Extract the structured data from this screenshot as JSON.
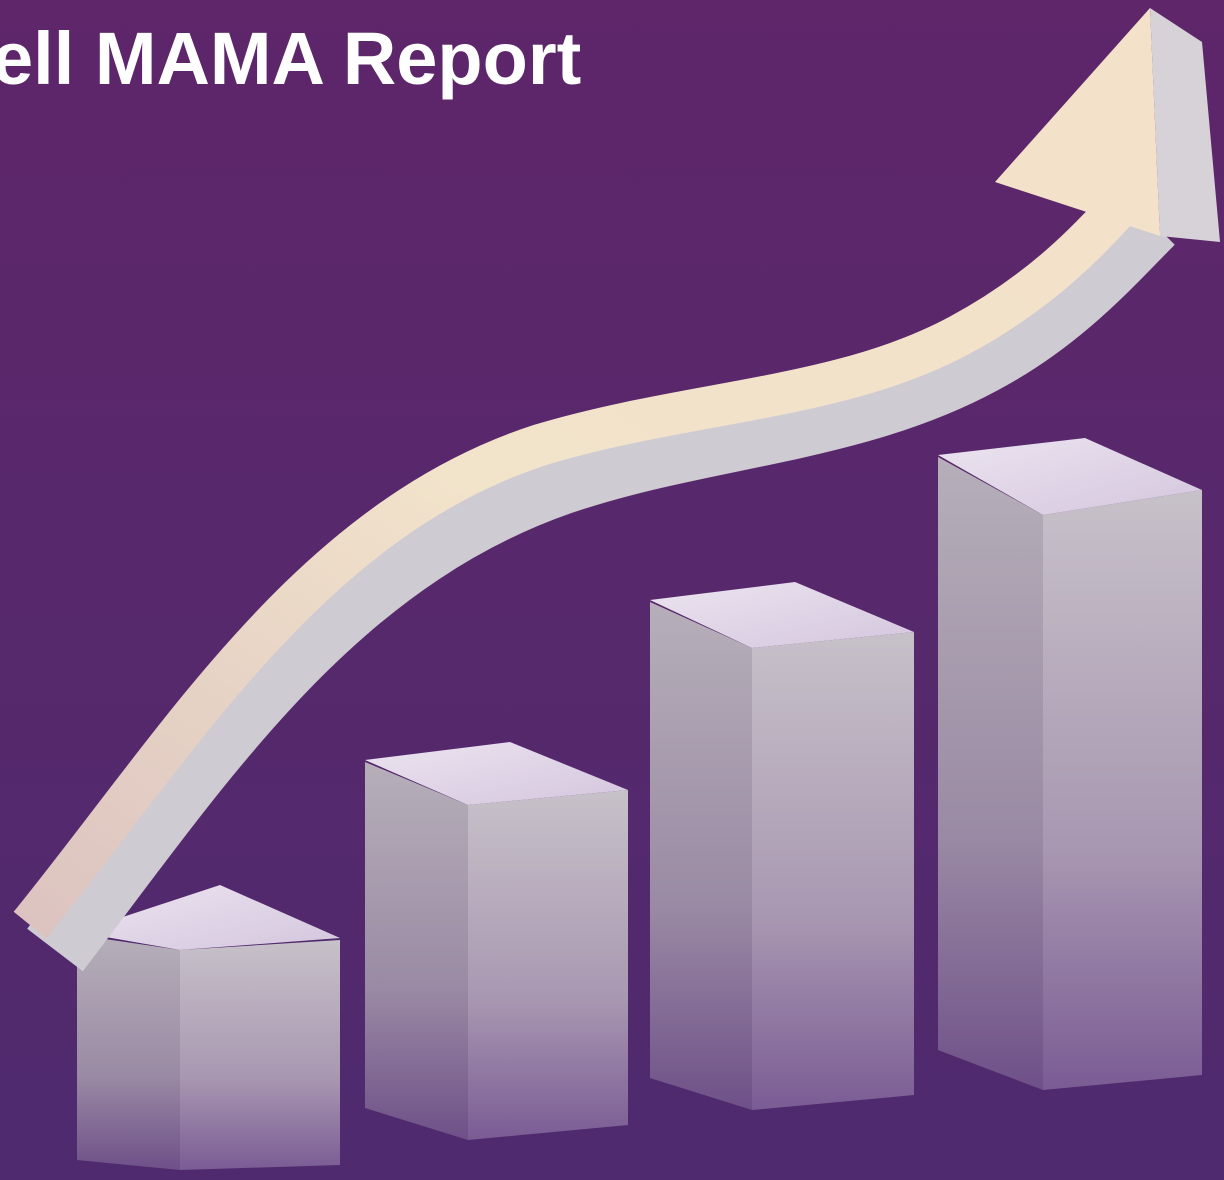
{
  "header": {
    "title": "ell MAMA Report"
  }
}
